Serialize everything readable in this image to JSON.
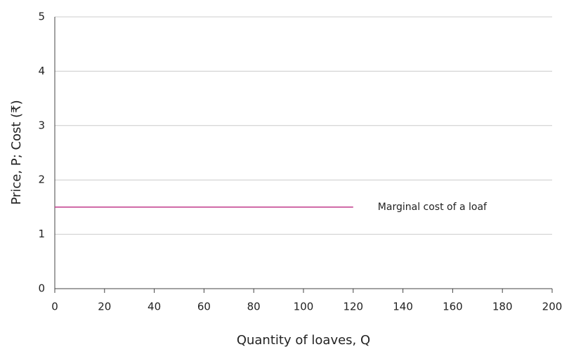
{
  "chart_data": {
    "type": "line",
    "x": [
      0,
      120
    ],
    "series": [
      {
        "name": "Marginal cost of a loaf",
        "color": "#c0398a",
        "values": [
          1.5,
          1.5
        ]
      }
    ],
    "xlim": [
      0,
      200
    ],
    "xticks": [
      0,
      20,
      40,
      60,
      80,
      100,
      120,
      140,
      160,
      180,
      200
    ],
    "ylim": [
      0,
      5
    ],
    "yticks": [
      0,
      1,
      2,
      3,
      4,
      5
    ],
    "xlabel": "Quantity of loaves, Q",
    "ylabel": "Price, P; Cost (₹)",
    "grid": true
  }
}
